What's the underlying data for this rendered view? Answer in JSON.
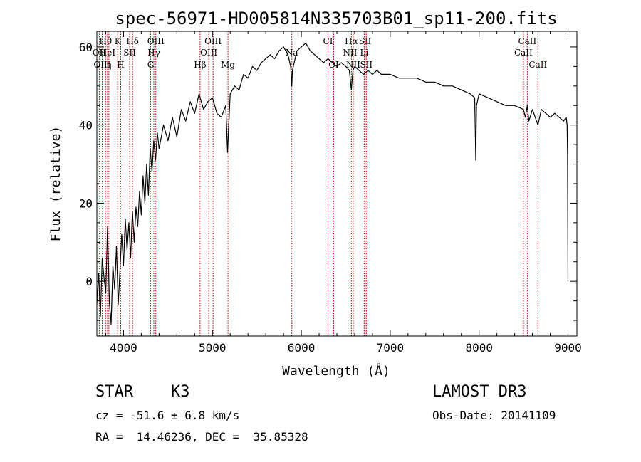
{
  "chart_data": {
    "type": "line",
    "title": "spec-56971-HD005814N335703B01_sp11-200.fits",
    "xlabel": "Wavelength (Å)",
    "ylabel": "Flux (relative)",
    "xlim": [
      3700,
      9100
    ],
    "ylim": [
      -14,
      64
    ],
    "xticks": [
      4000,
      5000,
      6000,
      7000,
      8000,
      9000
    ],
    "yticks": [
      0,
      20,
      40,
      60
    ],
    "grid": false,
    "line_color": "#000000",
    "marker_color": "#cc0000",
    "series": [
      {
        "x": [
          3700,
          3720,
          3740,
          3760,
          3780,
          3800,
          3820,
          3840,
          3860,
          3880,
          3900,
          3920,
          3940,
          3960,
          3980,
          4000,
          4020,
          4040,
          4060,
          4080,
          4100,
          4120,
          4140,
          4160,
          4180,
          4200,
          4220,
          4240,
          4260,
          4280,
          4300,
          4320,
          4340,
          4360,
          4380,
          4400,
          4450,
          4500,
          4550,
          4600,
          4650,
          4700,
          4750,
          4800,
          4850,
          4900,
          4950,
          5000,
          5050,
          5100,
          5150,
          5170,
          5180,
          5200,
          5250,
          5300,
          5350,
          5400,
          5450,
          5500,
          5550,
          5600,
          5650,
          5700,
          5750,
          5800,
          5850,
          5880,
          5893,
          5900,
          5950,
          6000,
          6050,
          6100,
          6150,
          6200,
          6250,
          6300,
          6350,
          6400,
          6450,
          6500,
          6540,
          6563,
          6580,
          6600,
          6650,
          6700,
          6750,
          6800,
          6850,
          6900,
          6950,
          7000,
          7100,
          7200,
          7300,
          7400,
          7500,
          7600,
          7700,
          7800,
          7900,
          7950,
          7962,
          7970,
          8000,
          8100,
          8200,
          8300,
          8400,
          8498,
          8520,
          8542,
          8560,
          8600,
          8662,
          8700,
          8750,
          8800,
          8850,
          8900,
          8950,
          8980,
          8990,
          8995,
          9000
        ],
        "y": [
          -6,
          2,
          -9,
          6,
          1,
          -3,
          14,
          -5,
          -11,
          4,
          -2,
          9,
          -6,
          3,
          12,
          4,
          16,
          8,
          15,
          6,
          18,
          10,
          19,
          14,
          23,
          17,
          27,
          20,
          30,
          22,
          34,
          28,
          36,
          31,
          38,
          34,
          40,
          36,
          42,
          37,
          44,
          41,
          46,
          43,
          48,
          44,
          46,
          47,
          43,
          42,
          45,
          33,
          38,
          48,
          50,
          49,
          53,
          52,
          55,
          54,
          56,
          57,
          58,
          57,
          59,
          60,
          58,
          55,
          50,
          54,
          59,
          60,
          61,
          59,
          58,
          57,
          56,
          57,
          56,
          55,
          56,
          55,
          54,
          49,
          54,
          55,
          54,
          53,
          54,
          53,
          54,
          53,
          53,
          53,
          52,
          52,
          52,
          51,
          51,
          50,
          50,
          49,
          48,
          47,
          31,
          45,
          48,
          47,
          46,
          45,
          45,
          44,
          42,
          45,
          41,
          44,
          40,
          44,
          43,
          42,
          43,
          42,
          41,
          42,
          40,
          32,
          0
        ]
      }
    ],
    "line_markers": [
      {
        "label": "Hθ",
        "x": 3798,
        "row": 1
      },
      {
        "label": "OII",
        "x": 3727,
        "row": 2
      },
      {
        "label": "OIII",
        "x": 3760,
        "row": 3
      },
      {
        "label": "HeI",
        "x": 3820,
        "row": 2
      },
      {
        "label": "η",
        "x": 3835,
        "row": 3
      },
      {
        "label": "K",
        "x": 3934,
        "row": 1
      },
      {
        "label": "H",
        "x": 3968,
        "row": 3
      },
      {
        "label": "SII",
        "x": 4069,
        "row": 2
      },
      {
        "label": "Hδ",
        "x": 4102,
        "row": 1
      },
      {
        "label": "OIII",
        "x": 4363,
        "row": 1
      },
      {
        "label": "Hγ",
        "x": 4341,
        "row": 2
      },
      {
        "label": "G",
        "x": 4305,
        "row": 3
      },
      {
        "label": "Hβ",
        "x": 4861,
        "row": 3
      },
      {
        "label": "OIII",
        "x": 5007,
        "row": 1
      },
      {
        "label": "OIII",
        "x": 4959,
        "row": 2
      },
      {
        "label": "Mg",
        "x": 5175,
        "row": 3
      },
      {
        "label": "Na",
        "x": 5893,
        "row": 2
      },
      {
        "label": "CI",
        "x": 6300,
        "row": 1
      },
      {
        "label": "OI",
        "x": 6364,
        "row": 3
      },
      {
        "label": "Hα",
        "x": 6563,
        "row": 1
      },
      {
        "label": "NII",
        "x": 6548,
        "row": 2
      },
      {
        "label": "NII",
        "x": 6584,
        "row": 3
      },
      {
        "label": "SII",
        "x": 6717,
        "row": 1
      },
      {
        "label": "Li",
        "x": 6708,
        "row": 2
      },
      {
        "label": "SII",
        "x": 6731,
        "row": 3
      },
      {
        "label": "CaII",
        "x": 8542,
        "row": 1
      },
      {
        "label": "CaII",
        "x": 8498,
        "row": 2
      },
      {
        "label": "CaII",
        "x": 8662,
        "row": 3
      }
    ]
  },
  "info": {
    "object_class": "STAR",
    "subclass": "K3",
    "survey": "LAMOST DR3",
    "redshift": "cz = -51.6 ± 6.8 km/s",
    "obs_date": "Obs-Date: 20141109",
    "coords": "RA =  14.46236, DEC =  35.85328"
  }
}
